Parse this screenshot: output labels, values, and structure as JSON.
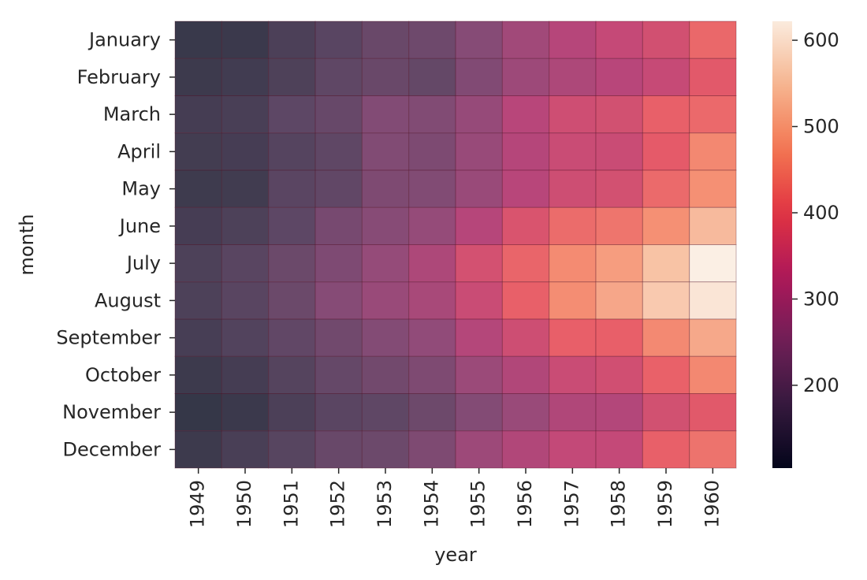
{
  "chart_data": {
    "type": "heatmap",
    "title": "",
    "xlabel": "year",
    "ylabel": "month",
    "x": [
      "1949",
      "1950",
      "1951",
      "1952",
      "1953",
      "1954",
      "1955",
      "1956",
      "1957",
      "1958",
      "1959",
      "1960"
    ],
    "y": [
      "January",
      "February",
      "March",
      "April",
      "May",
      "June",
      "July",
      "August",
      "September",
      "October",
      "November",
      "December"
    ],
    "values": [
      [
        112,
        115,
        145,
        171,
        196,
        204,
        242,
        284,
        315,
        340,
        360,
        417
      ],
      [
        118,
        126,
        150,
        180,
        196,
        188,
        233,
        277,
        301,
        318,
        342,
        391
      ],
      [
        132,
        141,
        178,
        193,
        236,
        235,
        267,
        317,
        356,
        362,
        406,
        419
      ],
      [
        129,
        135,
        163,
        181,
        235,
        227,
        269,
        313,
        348,
        348,
        396,
        461
      ],
      [
        121,
        125,
        172,
        183,
        229,
        234,
        270,
        318,
        355,
        363,
        420,
        472
      ],
      [
        135,
        149,
        178,
        218,
        243,
        264,
        315,
        374,
        422,
        435,
        472,
        535
      ],
      [
        148,
        170,
        199,
        230,
        264,
        302,
        364,
        413,
        465,
        491,
        548,
        622
      ],
      [
        148,
        170,
        199,
        242,
        272,
        293,
        347,
        405,
        467,
        505,
        559,
        606
      ],
      [
        136,
        158,
        184,
        209,
        237,
        259,
        312,
        355,
        404,
        404,
        463,
        508
      ],
      [
        119,
        133,
        162,
        191,
        211,
        229,
        274,
        306,
        347,
        359,
        407,
        461
      ],
      [
        104,
        114,
        146,
        172,
        180,
        203,
        237,
        271,
        305,
        310,
        362,
        390
      ],
      [
        118,
        140,
        166,
        194,
        201,
        229,
        278,
        306,
        336,
        337,
        405,
        432
      ]
    ],
    "vmin": 104,
    "vmax": 622,
    "colorbar_ticks": [
      200,
      300,
      400,
      500,
      600
    ],
    "colormap": "rocket",
    "colormap_stops": [
      "#03051a",
      "#35193e",
      "#701f57",
      "#ad1759",
      "#e13342",
      "#f37651",
      "#f6b48f",
      "#faebdd"
    ]
  }
}
